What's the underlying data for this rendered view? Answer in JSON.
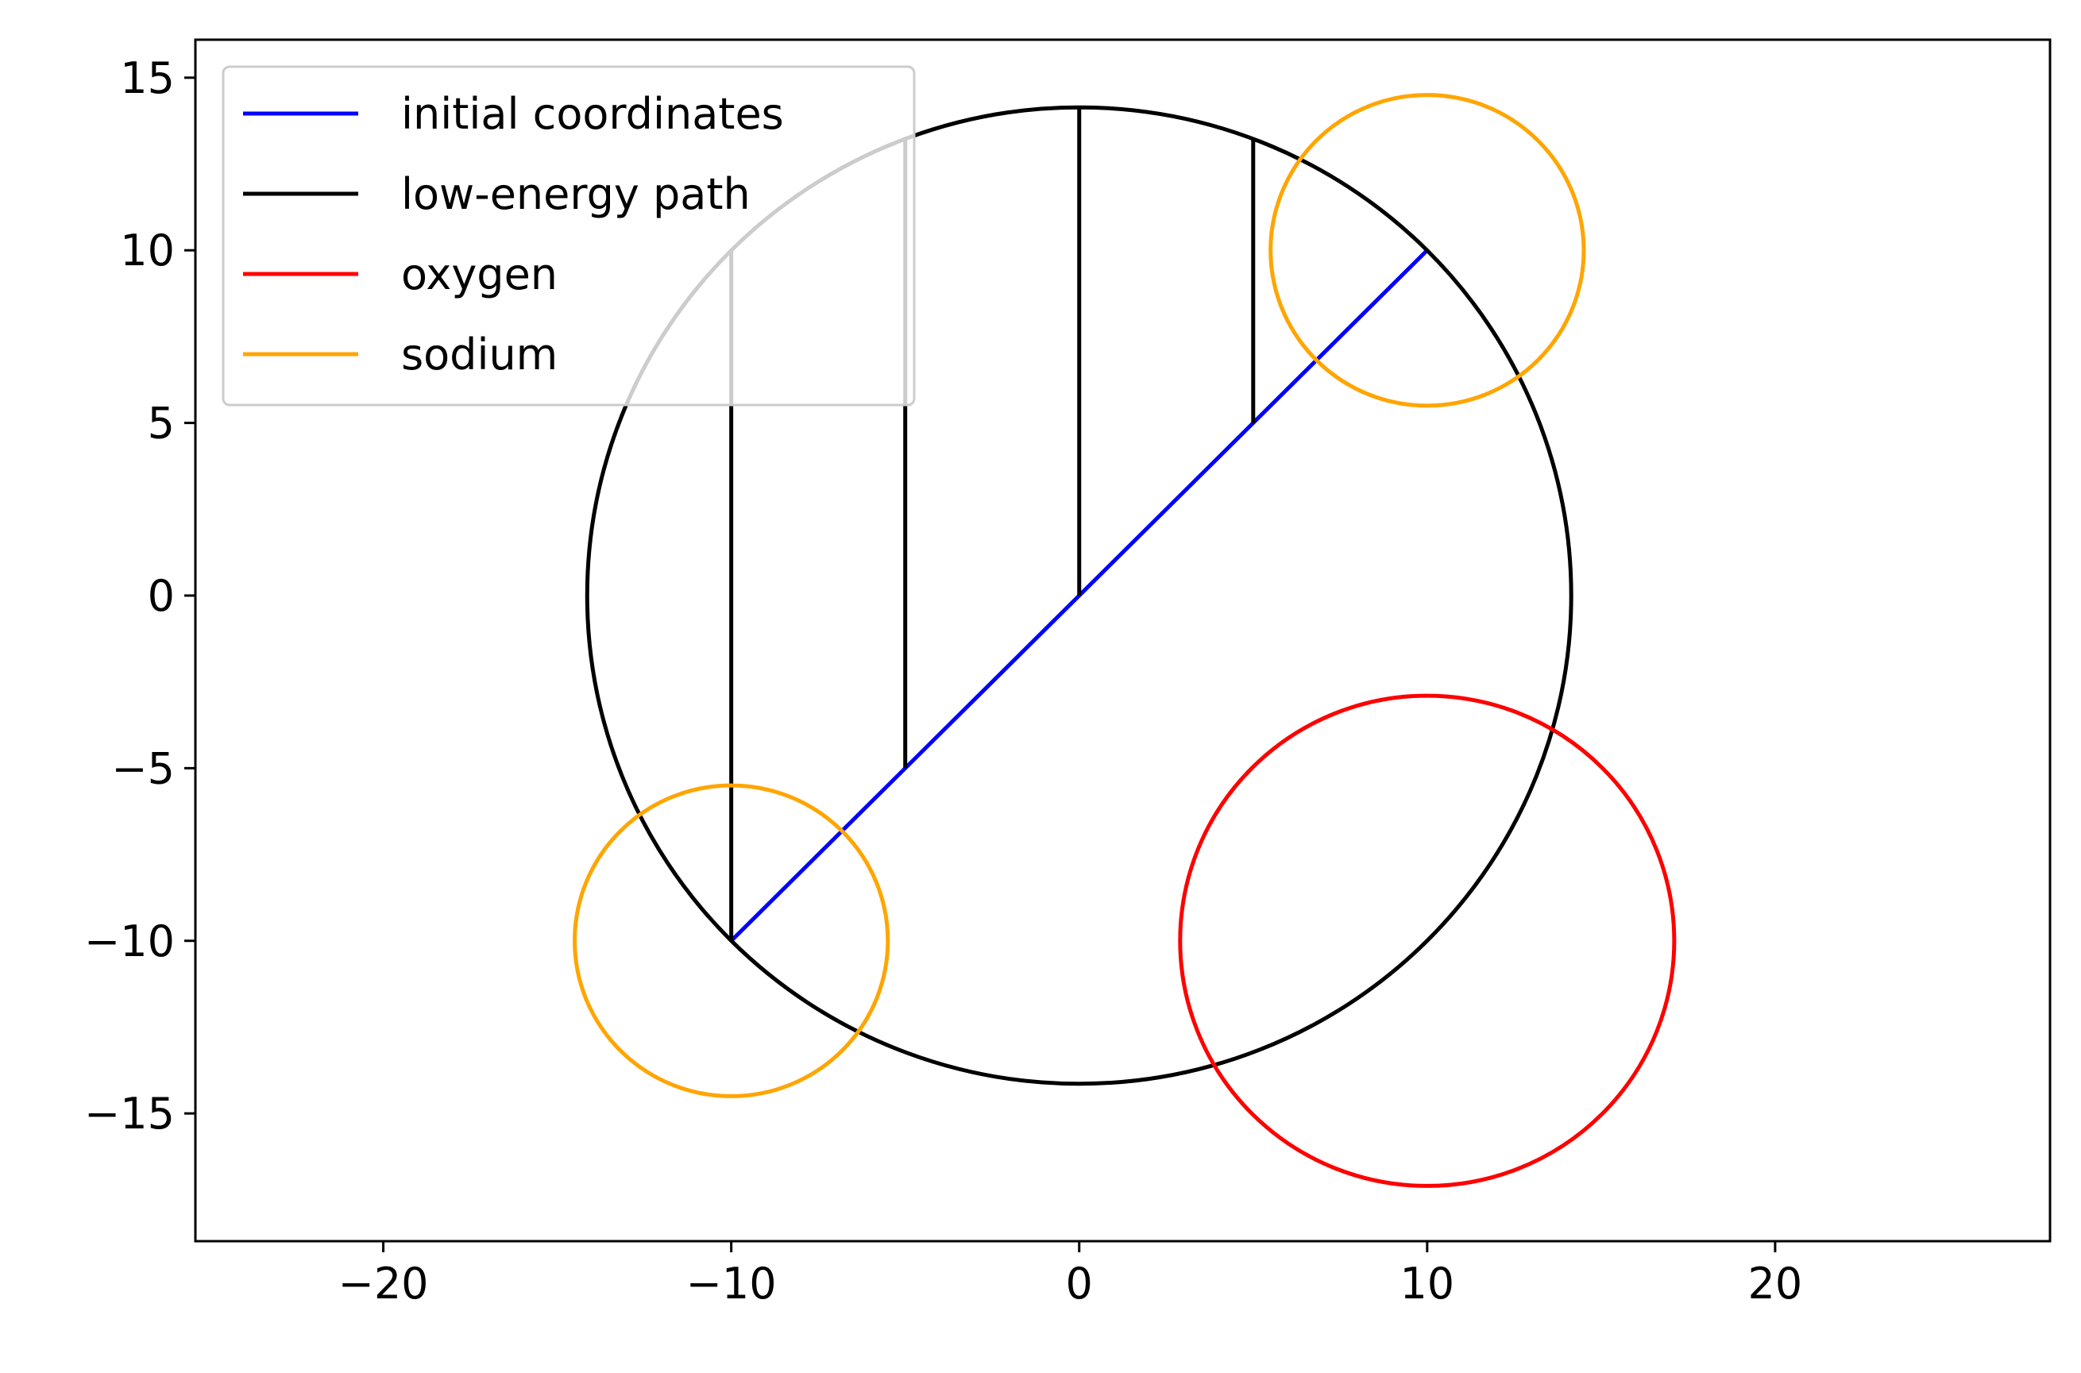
{
  "chart_data": {
    "type": "line",
    "title": "",
    "xlabel": "",
    "ylabel": "",
    "xlim": [
      -25.4,
      27.9
    ],
    "ylim": [
      -18.7,
      16.1
    ],
    "xticks": [
      -20,
      -10,
      0,
      10,
      20
    ],
    "yticks": [
      15,
      10,
      5,
      0,
      -5,
      -10,
      -15
    ],
    "xtick_labels": [
      "−20",
      "−10",
      "0",
      "10",
      "20"
    ],
    "ytick_labels": [
      "15",
      "10",
      "5",
      "0",
      "−5",
      "−10",
      "−15"
    ],
    "grid": false,
    "legend_position": "upper-left",
    "legend": [
      {
        "label": "initial coordinates",
        "color": "#0000ff"
      },
      {
        "label": "low-energy path",
        "color": "#000000"
      },
      {
        "label": "oxygen",
        "color": "#ff0000"
      },
      {
        "label": "sodium",
        "color": "#ffa500"
      }
    ],
    "series": [
      {
        "name": "initial coordinates",
        "color": "#0000ff",
        "kind": "polyline",
        "points": [
          [
            -10,
            -10
          ],
          [
            10,
            10
          ]
        ]
      },
      {
        "name": "low-energy path",
        "color": "#000000",
        "kind": "shapes",
        "circles": [
          {
            "cx": 0,
            "cy": 0,
            "r": 14.14
          }
        ],
        "segments": [
          [
            [
              -10,
              -10
            ],
            [
              -10,
              10
            ]
          ],
          [
            [
              -5,
              -5
            ],
            [
              -5,
              13.23
            ]
          ],
          [
            [
              0,
              0
            ],
            [
              0,
              14.14
            ]
          ],
          [
            [
              5,
              5
            ],
            [
              5,
              13.23
            ]
          ]
        ]
      },
      {
        "name": "oxygen",
        "color": "#ff0000",
        "kind": "shapes",
        "circles": [
          {
            "cx": 10,
            "cy": -10,
            "r": 7.1
          }
        ]
      },
      {
        "name": "sodium",
        "color": "#ffa500",
        "kind": "shapes",
        "circles": [
          {
            "cx": 10,
            "cy": 10,
            "r": 4.5
          },
          {
            "cx": -10,
            "cy": -10,
            "r": 4.5
          }
        ]
      }
    ]
  }
}
